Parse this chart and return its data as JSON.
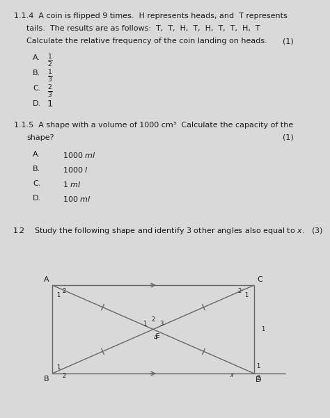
{
  "bg_color": "#d9d9d9",
  "text_color": "#1a1a1a",
  "q114_line1": "1.1.4  A coin is flipped 9 times.  H represents heads, and  T represents",
  "q114_line2": "tails.  The results are as follows:  T,  T,  H,  T,  H,  T,  T,  H,  T",
  "q114_line3": "Calculate the relative frequency of the coin landing on heads.",
  "q114_mark": "(1)",
  "options_114": [
    [
      "A.",
      "$\\frac{1}{2}$"
    ],
    [
      "B.",
      "$\\frac{1}{3}$"
    ],
    [
      "C.",
      "$\\frac{2}{3}$"
    ],
    [
      "D.",
      "1"
    ]
  ],
  "q115_line1": "1.1.5  A shape with a volume of 1000 cm³  Calculate the capacity of the",
  "q115_line2": "shape?",
  "q115_mark": "(1)",
  "options_115": [
    [
      "A.",
      "1000 $ml$"
    ],
    [
      "B.",
      "1000 $l$"
    ],
    [
      "C.",
      "1 $ml$"
    ],
    [
      "D.",
      "100 $ml$"
    ]
  ],
  "q12_line": "1.2    Study the following shape and identify 3 other angles also equal to $x$.   (3)",
  "line_color": "#666666"
}
